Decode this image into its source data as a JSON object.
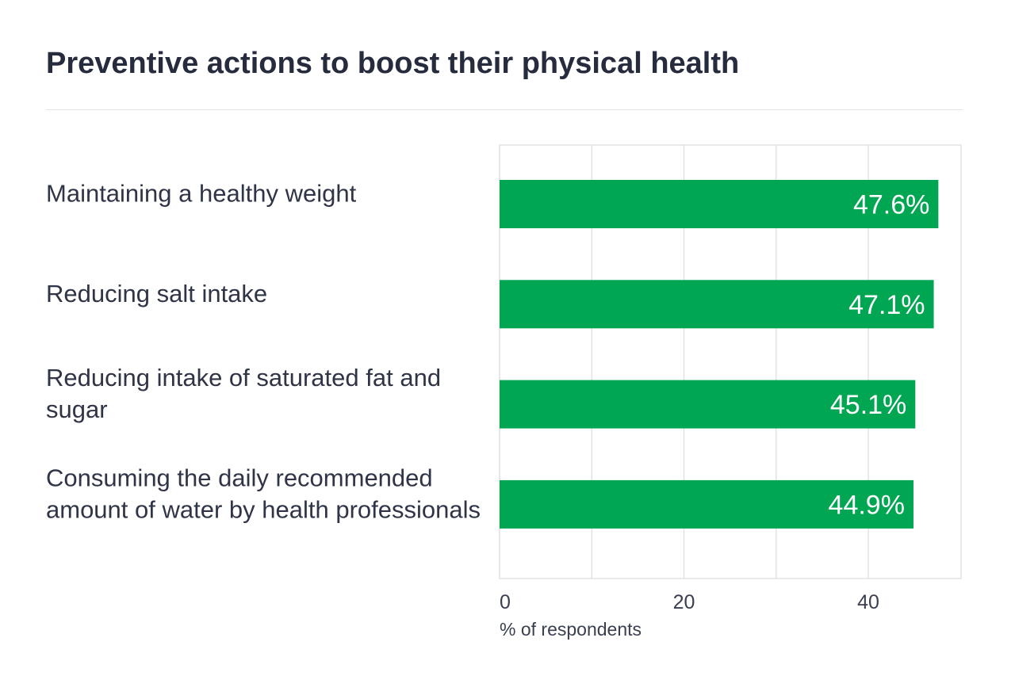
{
  "chart_data": {
    "type": "bar",
    "orientation": "horizontal",
    "title": "Preventive actions to boost their physical health",
    "categories": [
      "Maintaining a healthy weight",
      "Reducing salt intake",
      "Reducing intake of saturated fat and sugar",
      "Consuming the daily recommended amount of water by health professionals"
    ],
    "values": [
      47.6,
      47.1,
      45.1,
      44.9
    ],
    "value_labels": [
      "47.6%",
      "47.1%",
      "45.1%",
      "44.9%"
    ],
    "xlabel": "% of respondents",
    "ylabel": "",
    "xlim": [
      0,
      50
    ],
    "xticks": [
      0,
      20,
      40
    ],
    "gridlines_at": [
      0,
      10,
      20,
      30,
      40
    ],
    "grid": true,
    "bar_color": "#00a651",
    "value_label_color": "#ffffff"
  }
}
